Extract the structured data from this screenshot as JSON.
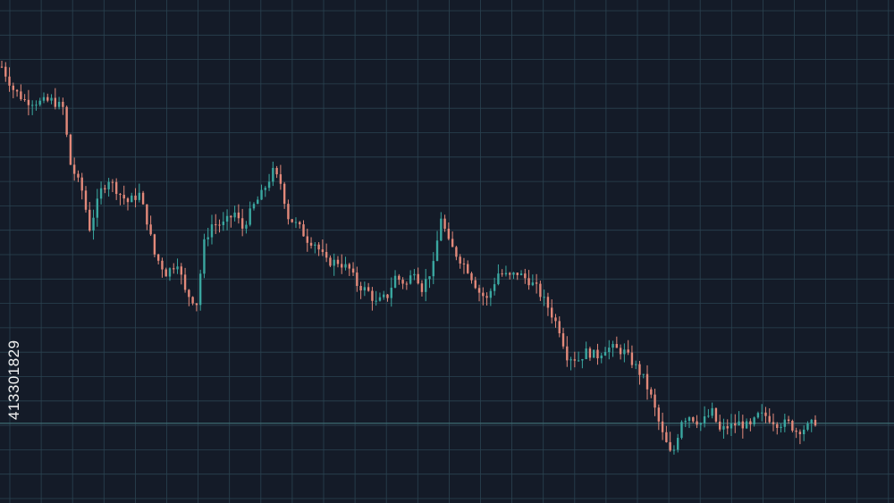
{
  "chart_data": {
    "type": "candlestick",
    "title": "",
    "xlabel": "",
    "ylabel": "",
    "grid": true,
    "axis_labels_visible": false,
    "reference_line": {
      "value": 0.3
    },
    "colors": {
      "background": "#141b28",
      "grid": "#2a4350",
      "up": "#3aa7a0",
      "down": "#e3897a",
      "reference_line": "#3d6a70"
    },
    "close_path": [
      [
        0,
        9.8
      ],
      [
        3,
        9.2
      ],
      [
        6,
        8.9
      ],
      [
        10,
        8.85
      ],
      [
        13,
        8.9
      ],
      [
        16,
        8.7
      ],
      [
        18,
        7.2
      ],
      [
        21,
        6.5
      ],
      [
        23,
        5.5
      ],
      [
        26,
        6.5
      ],
      [
        28,
        6.8
      ],
      [
        31,
        6.4
      ],
      [
        33,
        6.2
      ],
      [
        36,
        6.4
      ],
      [
        38,
        5.7
      ],
      [
        40,
        4.8
      ],
      [
        43,
        4.3
      ],
      [
        46,
        4.6
      ],
      [
        48,
        3.8
      ],
      [
        51,
        3.5
      ],
      [
        53,
        5.1
      ],
      [
        55,
        5.6
      ],
      [
        58,
        5.6
      ],
      [
        61,
        5.9
      ],
      [
        63,
        5.5
      ],
      [
        66,
        6.1
      ],
      [
        68,
        6.4
      ],
      [
        71,
        7.0
      ],
      [
        73,
        6.7
      ],
      [
        75,
        5.8
      ],
      [
        78,
        5.5
      ],
      [
        80,
        5.2
      ],
      [
        82,
        5.1
      ],
      [
        85,
        4.6
      ],
      [
        88,
        4.6
      ],
      [
        91,
        4.4
      ],
      [
        93,
        4.0
      ],
      [
        96,
        3.8
      ],
      [
        98,
        3.5
      ],
      [
        101,
        3.7
      ],
      [
        103,
        4.2
      ],
      [
        106,
        4.0
      ],
      [
        108,
        4.4
      ],
      [
        110,
        3.9
      ],
      [
        113,
        4.5
      ],
      [
        115,
        5.8
      ],
      [
        117,
        5.1
      ],
      [
        119,
        4.8
      ],
      [
        122,
        4.4
      ],
      [
        125,
        3.8
      ],
      [
        127,
        3.6
      ],
      [
        130,
        4.3
      ],
      [
        133,
        4.2
      ],
      [
        135,
        4.3
      ],
      [
        138,
        4.1
      ],
      [
        140,
        3.9
      ],
      [
        143,
        3.4
      ],
      [
        146,
        2.8
      ],
      [
        148,
        2.1
      ],
      [
        151,
        2.0
      ],
      [
        153,
        2.2
      ],
      [
        156,
        2.1
      ],
      [
        158,
        2.3
      ],
      [
        160,
        2.3
      ],
      [
        163,
        2.2
      ],
      [
        166,
        1.8
      ],
      [
        168,
        1.5
      ],
      [
        170,
        1.0
      ],
      [
        173,
        0.0
      ],
      [
        175,
        -0.5
      ],
      [
        176,
        -0.4
      ],
      [
        178,
        0.4
      ],
      [
        180,
        0.5
      ],
      [
        183,
        0.3
      ],
      [
        186,
        0.6
      ],
      [
        188,
        0.1
      ],
      [
        190,
        0.2
      ],
      [
        193,
        0.3
      ],
      [
        196,
        0.2
      ],
      [
        198,
        0.5
      ],
      [
        200,
        0.5
      ],
      [
        203,
        0.3
      ],
      [
        206,
        0.3
      ],
      [
        208,
        0.1
      ],
      [
        211,
        0.2
      ],
      [
        213,
        0.35
      ]
    ]
  },
  "overlay": {
    "stock_id": "413301829"
  }
}
